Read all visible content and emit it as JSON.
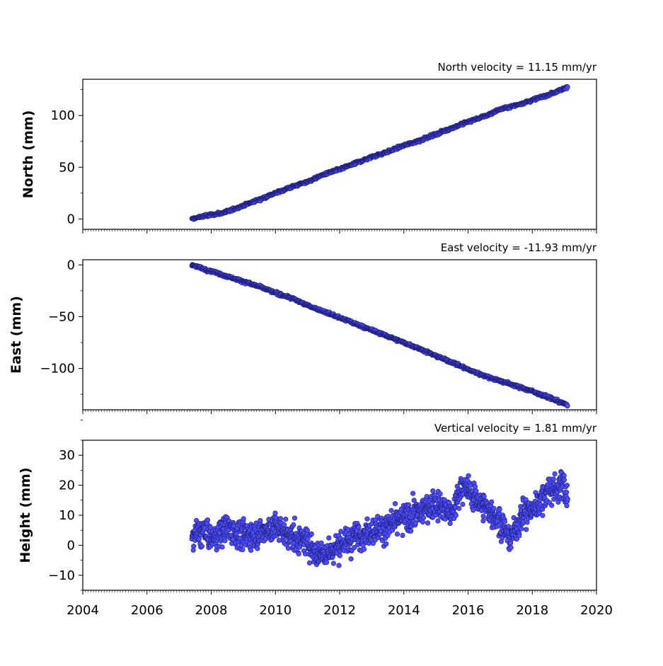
{
  "figure": {
    "x_axis_tick_labels": [
      "2004",
      "2006",
      "2008",
      "2010",
      "2012",
      "2014",
      "2016",
      "2018",
      "2020"
    ]
  },
  "chart_data": [
    {
      "type": "scatter",
      "title": "North velocity = 11.15 mm/yr",
      "xlabel": "",
      "ylabel": "North (mm)",
      "xlim": [
        2004,
        2020
      ],
      "ylim": [
        -10,
        135
      ],
      "yticks": [
        0,
        50,
        100
      ],
      "color": "#4d4dff",
      "edge_color": "#1a1a66",
      "series": [
        {
          "x": [
            2007.4,
            2007.8,
            2008.0,
            2008.4,
            2009.0,
            2009.5,
            2010.0,
            2010.5,
            2011.0,
            2011.5,
            2012.0,
            2012.5,
            2013.0,
            2013.5,
            2014.0,
            2014.5,
            2015.0,
            2015.5,
            2016.0,
            2016.5,
            2017.0,
            2017.5,
            2018.0,
            2018.5,
            2019.0,
            2019.1
          ],
          "y": [
            0,
            3,
            4,
            6,
            13,
            19,
            25,
            31,
            36,
            43,
            48,
            54,
            60,
            65,
            71,
            76,
            82,
            88,
            94,
            99,
            106,
            110,
            115,
            120,
            126,
            128
          ]
        }
      ]
    },
    {
      "type": "scatter",
      "title": "East velocity = -11.93 mm/yr",
      "xlabel": "",
      "ylabel": "East (mm)",
      "xlim": [
        2004,
        2020
      ],
      "ylim": [
        -140,
        5
      ],
      "yticks": [
        0,
        -50,
        -100
      ],
      "color": "#4d4dff",
      "edge_color": "#1a1a66",
      "series": [
        {
          "x": [
            2007.4,
            2007.8,
            2008.0,
            2008.5,
            2009.0,
            2009.5,
            2010.0,
            2010.5,
            2011.0,
            2011.5,
            2012.0,
            2012.5,
            2013.0,
            2013.5,
            2014.0,
            2014.5,
            2015.0,
            2015.5,
            2016.0,
            2016.5,
            2017.0,
            2017.5,
            2018.0,
            2018.5,
            2019.0,
            2019.1
          ],
          "y": [
            0,
            -4,
            -6,
            -11,
            -16,
            -21,
            -27,
            -32,
            -39,
            -45,
            -51,
            -57,
            -63,
            -69,
            -75,
            -81,
            -88,
            -94,
            -101,
            -107,
            -112,
            -117,
            -122,
            -128,
            -134,
            -136
          ]
        }
      ]
    },
    {
      "type": "scatter",
      "title": "Vertical velocity = 1.81 mm/yr",
      "xlabel": "",
      "ylabel": "Height (mm)",
      "xlim": [
        2004,
        2020
      ],
      "ylim": [
        -15,
        35
      ],
      "yticks": [
        -10,
        0,
        10,
        20,
        30
      ],
      "color": "#4d4dff",
      "edge_color": "#1a1a66",
      "series": [
        {
          "x": [
            2007.4,
            2007.8,
            2008.0,
            2008.5,
            2009.0,
            2009.5,
            2010.0,
            2010.5,
            2011.0,
            2011.3,
            2011.7,
            2012.0,
            2012.5,
            2013.0,
            2013.5,
            2014.0,
            2014.5,
            2015.0,
            2015.5,
            2015.8,
            2016.0,
            2016.5,
            2017.0,
            2017.3,
            2017.7,
            2018.0,
            2018.5,
            2019.0,
            2019.1
          ],
          "y": [
            3,
            5,
            2,
            6,
            3,
            4,
            6,
            3,
            1,
            -3,
            -2,
            0,
            3,
            5,
            6,
            9,
            11,
            14,
            10,
            20,
            18,
            13,
            8,
            2,
            10,
            12,
            18,
            20,
            15
          ]
        }
      ]
    }
  ]
}
